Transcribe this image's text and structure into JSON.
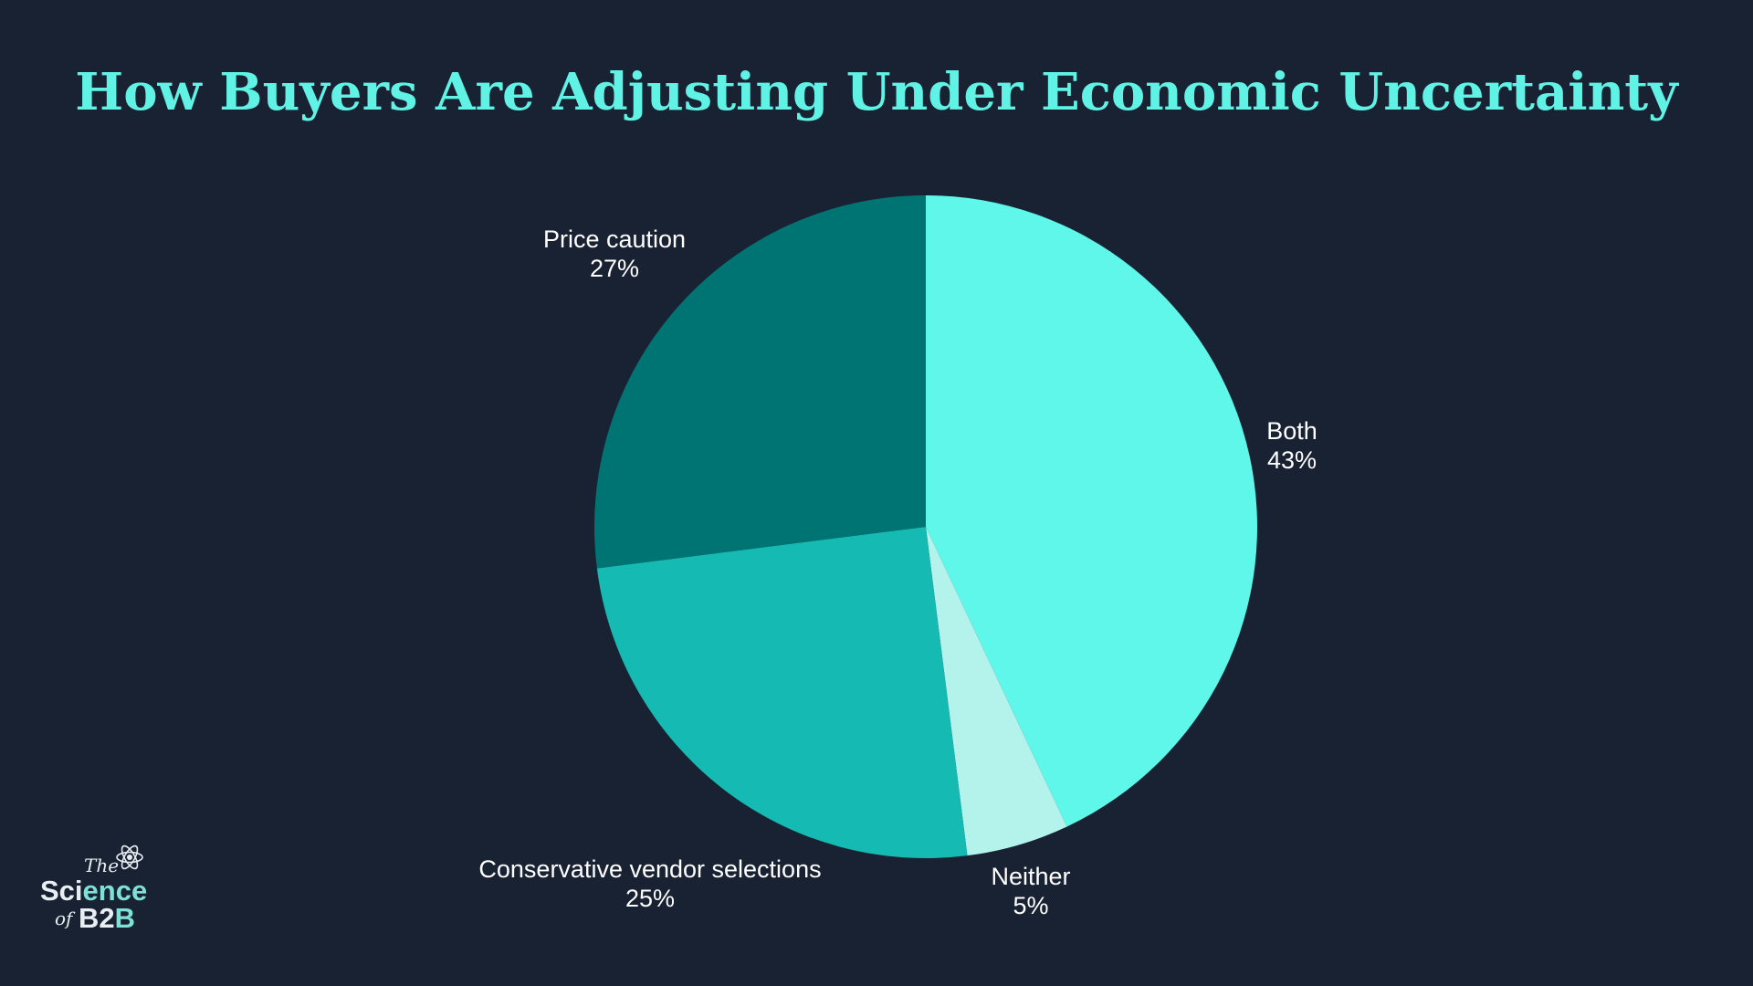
{
  "chart_data": {
    "type": "pie",
    "title": "How Buyers Are Adjusting Under Economic Uncertainty",
    "slices": [
      {
        "label": "Both",
        "value": 43,
        "value_label": "43%",
        "color": "#5ff7ea"
      },
      {
        "label": "Neither",
        "value": 5,
        "value_label": "5%",
        "color": "#b4f2ec"
      },
      {
        "label": "Conservative vendor selections",
        "value": 25,
        "value_label": "25%",
        "color": "#15bab3"
      },
      {
        "label": "Price caution",
        "value": 27,
        "value_label": "27%",
        "color": "#007373"
      }
    ],
    "start_angle": "12 o'clock",
    "direction": "clockwise",
    "legend": "none"
  },
  "colors": {
    "background": "#192232",
    "title": "#5ff2e5",
    "label_text": "#ffffff"
  },
  "logo": {
    "the": "The",
    "science_main": "Sci",
    "science_accent": "ence",
    "of": "of",
    "b2b_main": "B2",
    "b2b_accent": "B",
    "icon": "atom-icon"
  }
}
